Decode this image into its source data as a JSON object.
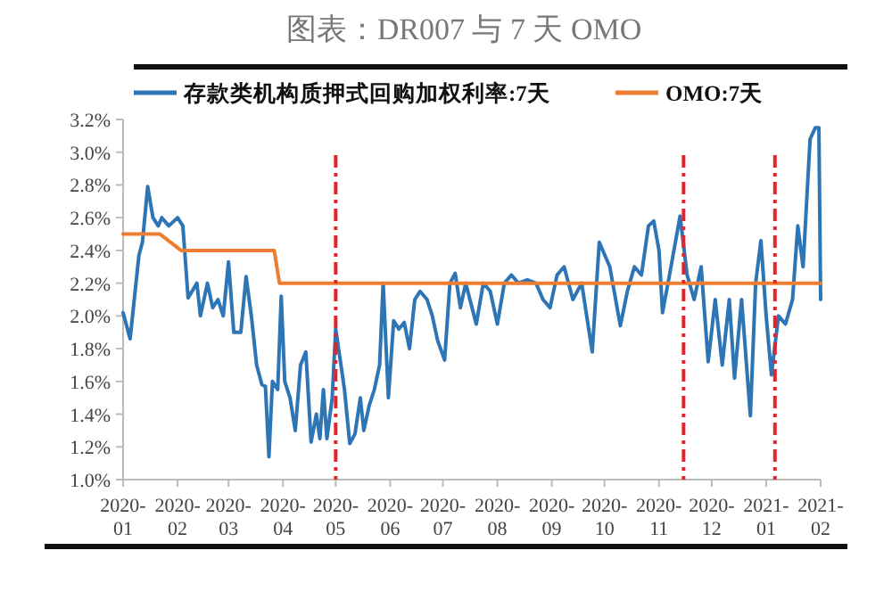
{
  "chart_data": {
    "type": "line",
    "title": "图表：DR007 与 7 天 OMO",
    "legend": "top",
    "grid": false,
    "line_style": "solid",
    "marker": "none",
    "xlim": [
      "2020-01-01",
      "2021-02-01"
    ],
    "xticks": [
      {
        "value": "2020-01-01",
        "label": "2020-01"
      },
      {
        "value": "2020-02-01",
        "label": "2020-02"
      },
      {
        "value": "2020-03-01",
        "label": "2020-03"
      },
      {
        "value": "2020-04-01",
        "label": "2020-04"
      },
      {
        "value": "2020-05-01",
        "label": "2020-05"
      },
      {
        "value": "2020-06-01",
        "label": "2020-06"
      },
      {
        "value": "2020-07-01",
        "label": "2020-07"
      },
      {
        "value": "2020-08-01",
        "label": "2020-08"
      },
      {
        "value": "2020-09-01",
        "label": "2020-09"
      },
      {
        "value": "2020-10-01",
        "label": "2020-10"
      },
      {
        "value": "2020-11-01",
        "label": "2020-11"
      },
      {
        "value": "2020-12-01",
        "label": "2020-12"
      },
      {
        "value": "2021-01-01",
        "label": "2021-01"
      },
      {
        "value": "2021-02-01",
        "label": "2021-02"
      }
    ],
    "ylim": [
      1.0,
      3.2
    ],
    "yticks": [
      {
        "value": 1.0,
        "label": "1.0%"
      },
      {
        "value": 1.2,
        "label": "1.2%"
      },
      {
        "value": 1.4,
        "label": "1.4%"
      },
      {
        "value": 1.6,
        "label": "1.6%"
      },
      {
        "value": 1.8,
        "label": "1.8%"
      },
      {
        "value": 2.0,
        "label": "2.0%"
      },
      {
        "value": 2.2,
        "label": "2.2%"
      },
      {
        "value": 2.4,
        "label": "2.4%"
      },
      {
        "value": 2.6,
        "label": "2.6%"
      },
      {
        "value": 2.8,
        "label": "2.8%"
      },
      {
        "value": 3.0,
        "label": "3.0%"
      },
      {
        "value": 3.2,
        "label": "3.2%"
      }
    ],
    "ref_lines": [
      {
        "axis": "x",
        "value": "2020-05-01",
        "color": "#e3242b",
        "line_style": "dashed"
      },
      {
        "axis": "x",
        "value": "2020-11-15",
        "color": "#e3242b",
        "line_style": "dashed"
      },
      {
        "axis": "x",
        "value": "2021-01-06",
        "color": "#e3242b",
        "line_style": "dashed"
      }
    ],
    "series": [
      {
        "name": "存款类机构质押式回购加权利率:7天",
        "color": "#2e75b6",
        "x": [
          "2020-01-01",
          "2020-01-05",
          "2020-01-10",
          "2020-01-12",
          "2020-01-15",
          "2020-01-18",
          "2020-01-21",
          "2020-01-23",
          "2020-01-27",
          "2020-02-01",
          "2020-02-04",
          "2020-02-07",
          "2020-02-12",
          "2020-02-14",
          "2020-02-18",
          "2020-02-21",
          "2020-02-24",
          "2020-02-27",
          "2020-03-01",
          "2020-03-04",
          "2020-03-08",
          "2020-03-11",
          "2020-03-14",
          "2020-03-17",
          "2020-03-20",
          "2020-03-22",
          "2020-03-24",
          "2020-03-26",
          "2020-03-29",
          "2020-03-31",
          "2020-04-02",
          "2020-04-05",
          "2020-04-08",
          "2020-04-11",
          "2020-04-14",
          "2020-04-17",
          "2020-04-20",
          "2020-04-22",
          "2020-04-24",
          "2020-04-26",
          "2020-04-29",
          "2020-05-01",
          "2020-05-04",
          "2020-05-06",
          "2020-05-09",
          "2020-05-12",
          "2020-05-15",
          "2020-05-17",
          "2020-05-20",
          "2020-05-23",
          "2020-05-26",
          "2020-05-28",
          "2020-05-31",
          "2020-06-03",
          "2020-06-06",
          "2020-06-09",
          "2020-06-12",
          "2020-06-15",
          "2020-06-18",
          "2020-06-22",
          "2020-06-25",
          "2020-06-28",
          "2020-07-02",
          "2020-07-05",
          "2020-07-08",
          "2020-07-11",
          "2020-07-14",
          "2020-07-20",
          "2020-07-24",
          "2020-07-28",
          "2020-08-01",
          "2020-08-05",
          "2020-08-09",
          "2020-08-13",
          "2020-08-18",
          "2020-08-23",
          "2020-08-27",
          "2020-08-31",
          "2020-09-04",
          "2020-09-08",
          "2020-09-13",
          "2020-09-18",
          "2020-09-24",
          "2020-09-28",
          "2020-10-04",
          "2020-10-10",
          "2020-10-14",
          "2020-10-18",
          "2020-10-22",
          "2020-10-26",
          "2020-10-29",
          "2020-11-01",
          "2020-11-03",
          "2020-11-07",
          "2020-11-13",
          "2020-11-17",
          "2020-11-21",
          "2020-11-25",
          "2020-11-29",
          "2020-12-03",
          "2020-12-07",
          "2020-12-11",
          "2020-12-14",
          "2020-12-18",
          "2020-12-23",
          "2020-12-26",
          "2020-12-29",
          "2021-01-01",
          "2021-01-04",
          "2021-01-08",
          "2021-01-12",
          "2021-01-16",
          "2021-01-19",
          "2021-01-22",
          "2021-01-26",
          "2021-01-29",
          "2021-01-31",
          "2021-02-01"
        ],
        "values": [
          2.02,
          1.86,
          2.37,
          2.45,
          2.79,
          2.6,
          2.55,
          2.6,
          2.55,
          2.6,
          2.55,
          2.11,
          2.2,
          2.0,
          2.2,
          2.05,
          2.1,
          2.0,
          2.33,
          1.9,
          1.9,
          2.24,
          2.0,
          1.7,
          1.58,
          1.57,
          1.14,
          1.6,
          1.55,
          2.12,
          1.6,
          1.5,
          1.3,
          1.7,
          1.78,
          1.23,
          1.4,
          1.25,
          1.55,
          1.25,
          1.5,
          1.92,
          1.7,
          1.55,
          1.22,
          1.28,
          1.5,
          1.3,
          1.45,
          1.55,
          1.7,
          2.2,
          1.5,
          1.97,
          1.92,
          1.96,
          1.8,
          2.1,
          2.15,
          2.1,
          2.0,
          1.85,
          1.73,
          2.2,
          2.26,
          2.05,
          2.2,
          1.95,
          2.2,
          2.15,
          1.95,
          2.2,
          2.25,
          2.2,
          2.22,
          2.2,
          2.1,
          2.05,
          2.25,
          2.3,
          2.1,
          2.2,
          1.78,
          2.45,
          2.3,
          1.94,
          2.15,
          2.3,
          2.25,
          2.55,
          2.58,
          2.4,
          2.02,
          2.25,
          2.61,
          2.25,
          2.1,
          2.3,
          1.72,
          2.1,
          1.7,
          2.1,
          1.62,
          2.1,
          1.39,
          2.2,
          2.46,
          2.0,
          1.64,
          2.0,
          1.95,
          2.1,
          2.55,
          2.3,
          3.08,
          3.15,
          3.15,
          2.1
        ]
      },
      {
        "name": "OMO:7天",
        "color": "#ed7d31",
        "x": [
          "2020-01-01",
          "2020-01-22",
          "2020-02-03",
          "2020-03-27",
          "2020-03-30",
          "2021-02-01"
        ],
        "values": [
          2.5,
          2.5,
          2.4,
          2.4,
          2.2,
          2.2
        ]
      }
    ]
  }
}
